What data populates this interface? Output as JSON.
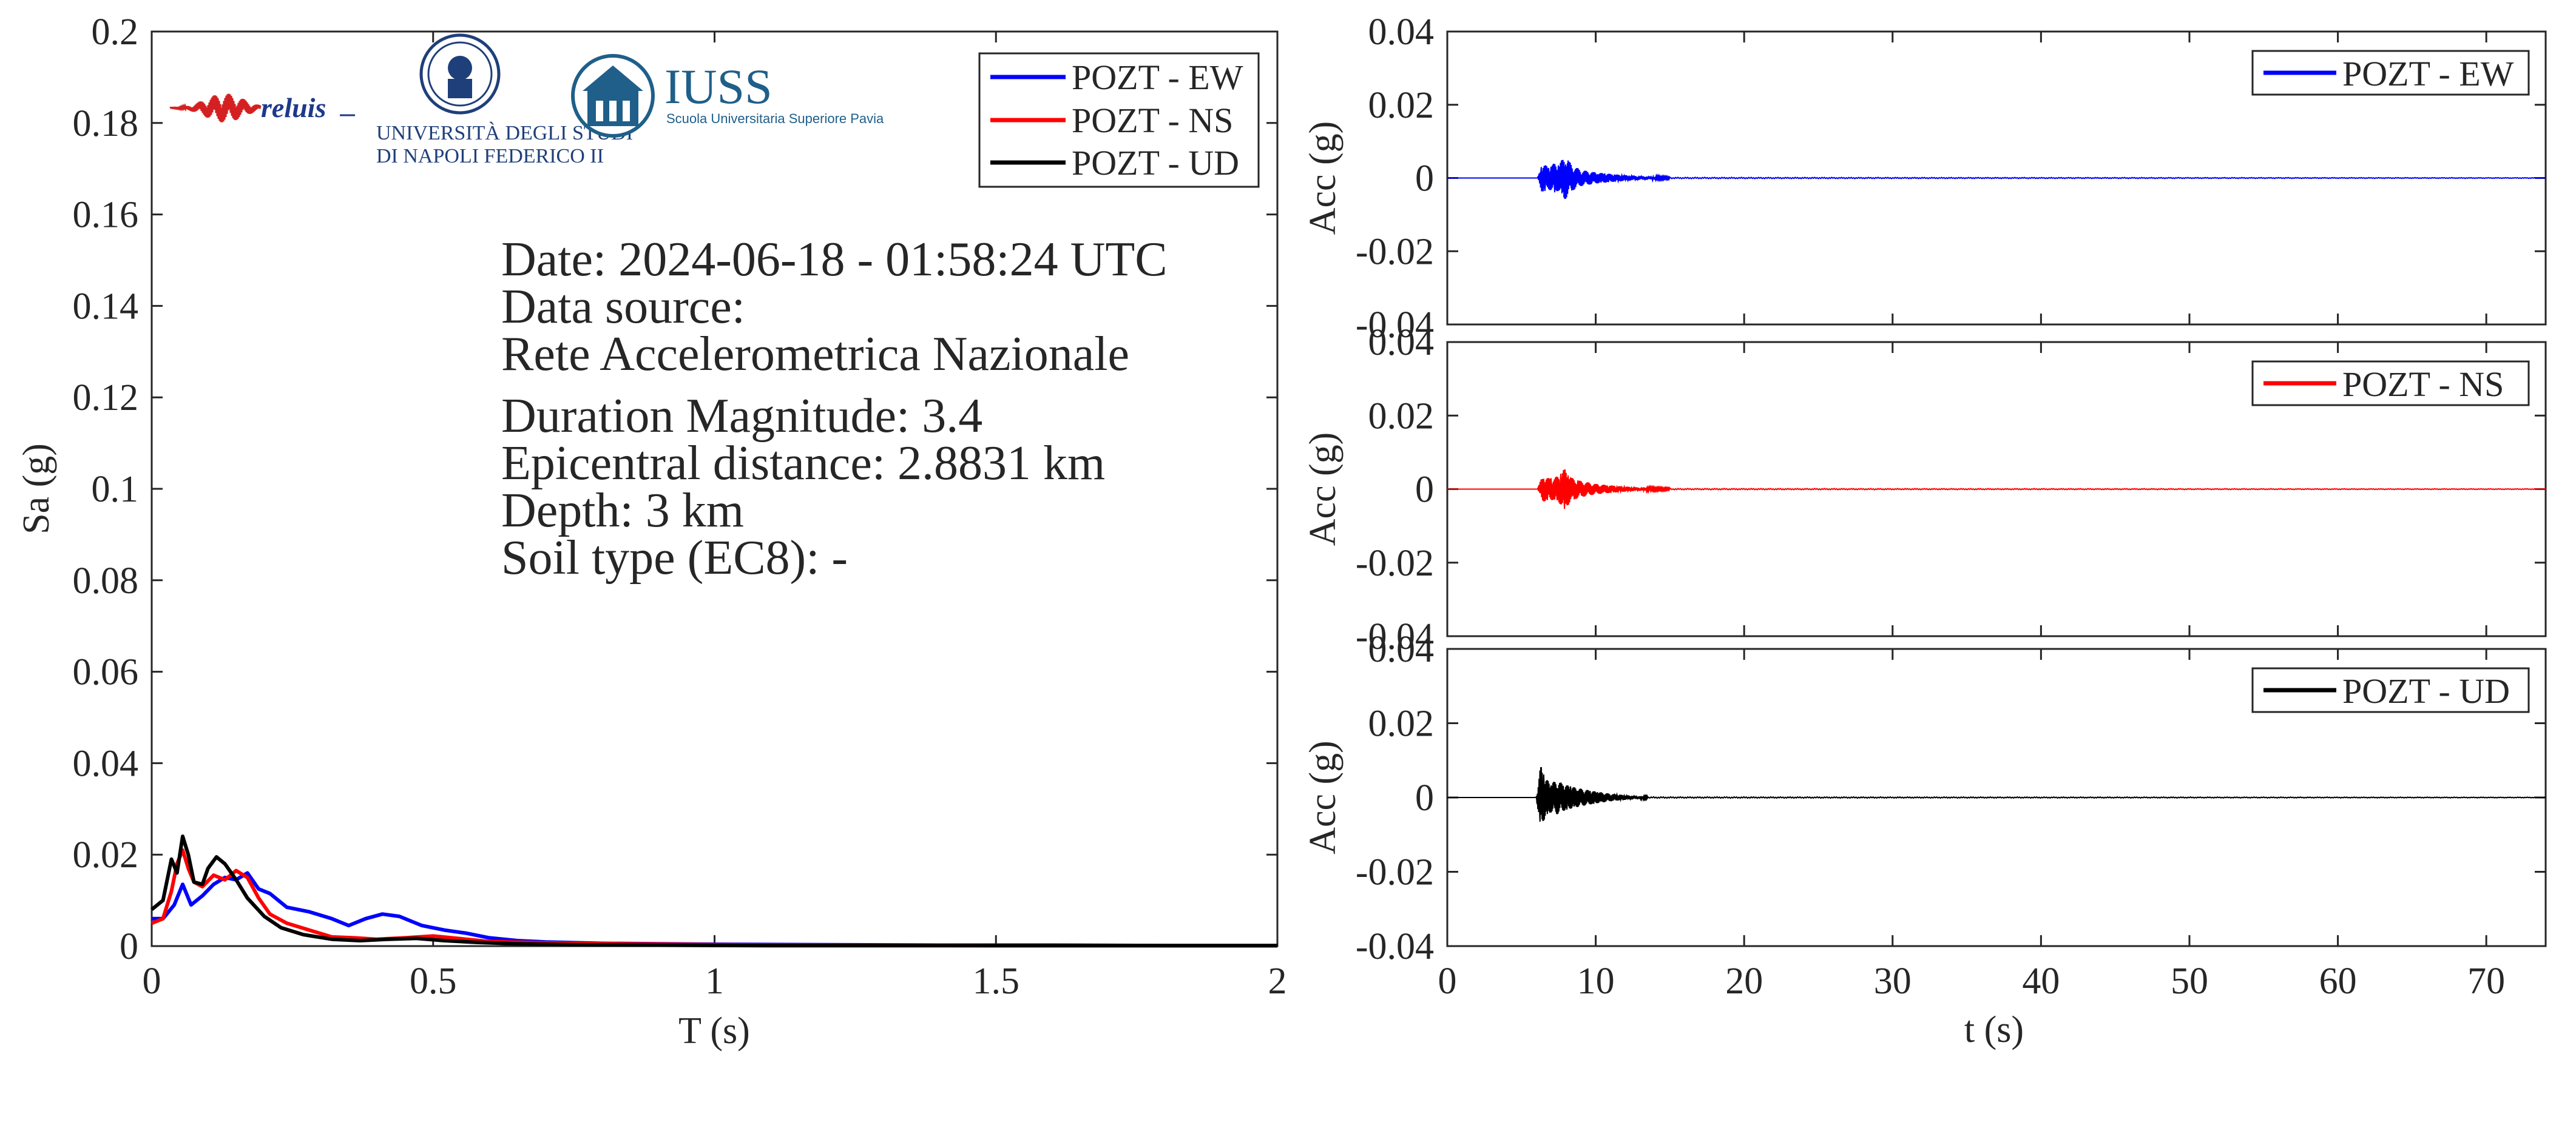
{
  "logos": {
    "reluis": {
      "text": "reluis",
      "icon": "seismograph-logo"
    },
    "unina": {
      "line1": "UNIVERSITÀ DEGLI STUDI",
      "line2": "DI NAPOLI FEDERICO II",
      "icon": "university-seal"
    },
    "iuss": {
      "title": "IUSS",
      "subtitle": "Scuola Universitaria Superiore Pavia",
      "icon": "iuss-building-logo"
    }
  },
  "info": {
    "date": "Date: 2024-06-18 - 01:58:24 UTC",
    "source_label": "Data source:",
    "source": "Rete Accelerometrica Nazionale",
    "magnitude": "Duration Magnitude: 3.4",
    "distance": "Epicentral distance: 2.8831 km",
    "depth": "Depth: 3 km",
    "soil": "Soil type (EC8): -"
  },
  "colors": {
    "EW": "#0000ff",
    "NS": "#ff0000",
    "UD": "#000000"
  },
  "chart_data": [
    {
      "type": "line",
      "xlabel": "T (s)",
      "ylabel": "Sa (g)",
      "xlim": [
        0,
        2
      ],
      "ylim": [
        0,
        0.2
      ],
      "xticks": [
        0,
        0.5,
        1,
        1.5,
        2
      ],
      "xtick_labels": [
        "0",
        "0.5",
        "1",
        "1.5",
        "2"
      ],
      "yticks": [
        0,
        0.02,
        0.04,
        0.06,
        0.08,
        0.1,
        0.12,
        0.14,
        0.16,
        0.18,
        0.2
      ],
      "ytick_labels": [
        "0",
        "0.02",
        "0.04",
        "0.06",
        "0.08",
        "0.1",
        "0.12",
        "0.14",
        "0.16",
        "0.18",
        "0.2"
      ],
      "legend": "top-right",
      "series": [
        {
          "name": "POZT - EW",
          "color": "#0000ff",
          "x": [
            0,
            0.02,
            0.04,
            0.055,
            0.07,
            0.09,
            0.11,
            0.13,
            0.15,
            0.17,
            0.19,
            0.21,
            0.24,
            0.28,
            0.32,
            0.35,
            0.38,
            0.41,
            0.44,
            0.48,
            0.52,
            0.56,
            0.6,
            0.65,
            0.7,
            0.8,
            0.9,
            1.0,
            1.2,
            1.4,
            1.6,
            1.8,
            2.0
          ],
          "y": [
            0.006,
            0.006,
            0.009,
            0.0135,
            0.009,
            0.011,
            0.0135,
            0.015,
            0.0145,
            0.016,
            0.0125,
            0.0115,
            0.0085,
            0.0075,
            0.006,
            0.0045,
            0.006,
            0.007,
            0.0065,
            0.0045,
            0.0035,
            0.0028,
            0.0018,
            0.0012,
            0.0009,
            0.0006,
            0.0005,
            0.0004,
            0.0003,
            0.0002,
            0.0002,
            0.0001,
            0.0001
          ]
        },
        {
          "name": "POZT - NS",
          "color": "#ff0000",
          "x": [
            0,
            0.02,
            0.035,
            0.045,
            0.055,
            0.065,
            0.075,
            0.09,
            0.11,
            0.13,
            0.15,
            0.17,
            0.19,
            0.21,
            0.24,
            0.28,
            0.32,
            0.36,
            0.4,
            0.45,
            0.5,
            0.55,
            0.6,
            0.7,
            0.8,
            1.0,
            1.2,
            1.5,
            2.0
          ],
          "y": [
            0.005,
            0.006,
            0.012,
            0.018,
            0.021,
            0.017,
            0.014,
            0.013,
            0.0155,
            0.0145,
            0.0165,
            0.015,
            0.0105,
            0.007,
            0.005,
            0.0035,
            0.002,
            0.0018,
            0.0015,
            0.0018,
            0.0022,
            0.0016,
            0.001,
            0.0007,
            0.0005,
            0.0003,
            0.0002,
            0.0001,
            0.0001
          ]
        },
        {
          "name": "POZT - UD",
          "color": "#000000",
          "x": [
            0,
            0.02,
            0.035,
            0.045,
            0.055,
            0.065,
            0.075,
            0.09,
            0.1,
            0.115,
            0.13,
            0.15,
            0.17,
            0.2,
            0.23,
            0.27,
            0.32,
            0.37,
            0.42,
            0.47,
            0.52,
            0.58,
            0.65,
            0.75,
            0.9,
            1.1,
            1.4,
            2.0
          ],
          "y": [
            0.008,
            0.01,
            0.019,
            0.016,
            0.024,
            0.02,
            0.014,
            0.0135,
            0.017,
            0.0195,
            0.018,
            0.0145,
            0.0105,
            0.0065,
            0.004,
            0.0025,
            0.0015,
            0.0012,
            0.0015,
            0.0017,
            0.0012,
            0.0008,
            0.0005,
            0.0003,
            0.0002,
            0.0001,
            0.0001,
            0.0001
          ]
        }
      ]
    },
    {
      "type": "line",
      "xlabel": "",
      "ylabel": "Acc (g)",
      "xlim": [
        0,
        74
      ],
      "ylim": [
        -0.04,
        0.04
      ],
      "xticks": [
        0,
        10,
        20,
        30,
        40,
        50,
        60,
        70
      ],
      "yticks": [
        -0.04,
        -0.02,
        0,
        0.02,
        0.04
      ],
      "ytick_labels": [
        "-0.04",
        "-0.02",
        "0",
        "0.02",
        "0.04"
      ],
      "legend": "top-right",
      "series": [
        {
          "name": "POZT - EW",
          "color": "#0000ff",
          "x": [
            0,
            6.1,
            6.4,
            6.8,
            7.2,
            7.5,
            7.9,
            8.4,
            9.0,
            10.0,
            11.5,
            13.0,
            15.0,
            74
          ],
          "y_envelope": [
            0,
            0,
            0.004,
            0.003,
            0.004,
            0.0035,
            0.006,
            0.0035,
            0.0022,
            0.0015,
            0.0009,
            0.0005,
            0.0002,
            0.0001
          ]
        }
      ]
    },
    {
      "type": "line",
      "xlabel": "",
      "ylabel": "Acc (g)",
      "xlim": [
        0,
        74
      ],
      "ylim": [
        -0.04,
        0.04
      ],
      "xticks": [
        0,
        10,
        20,
        30,
        40,
        50,
        60,
        70
      ],
      "yticks": [
        -0.04,
        -0.02,
        0,
        0.02,
        0.04
      ],
      "ytick_labels": [
        "-0.04",
        "-0.02",
        "0",
        "0.02",
        "0.04"
      ],
      "legend": "top-right",
      "series": [
        {
          "name": "POZT - NS",
          "color": "#ff0000",
          "x": [
            0,
            6.1,
            6.4,
            6.8,
            7.2,
            7.6,
            7.9,
            8.4,
            9.0,
            10.0,
            11.5,
            13.0,
            15.0,
            74
          ],
          "y_envelope": [
            0,
            0,
            0.0035,
            0.003,
            0.003,
            0.004,
            0.0055,
            0.003,
            0.0022,
            0.0014,
            0.0008,
            0.0004,
            0.0002,
            0.0001
          ]
        }
      ]
    },
    {
      "type": "line",
      "xlabel": "t (s)",
      "ylabel": "Acc (g)",
      "xlim": [
        0,
        74
      ],
      "ylim": [
        -0.04,
        0.04
      ],
      "xticks": [
        0,
        10,
        20,
        30,
        40,
        50,
        60,
        70
      ],
      "xtick_labels": [
        "0",
        "10",
        "20",
        "30",
        "40",
        "50",
        "60",
        "70"
      ],
      "yticks": [
        -0.04,
        -0.02,
        0,
        0.02,
        0.04
      ],
      "ytick_labels": [
        "-0.04",
        "-0.02",
        "0",
        "0.02",
        "0.04"
      ],
      "legend": "top-right",
      "series": [
        {
          "name": "POZT - UD",
          "color": "#000000",
          "x": [
            0,
            6.0,
            6.3,
            6.6,
            7.0,
            7.4,
            7.9,
            8.5,
            9.2,
            10.0,
            11.0,
            12.0,
            13.5,
            74
          ],
          "y_envelope": [
            0,
            0,
            0.0085,
            0.005,
            0.004,
            0.0045,
            0.0035,
            0.0028,
            0.0022,
            0.0016,
            0.001,
            0.0006,
            0.0002,
            0.0001
          ]
        }
      ]
    }
  ]
}
